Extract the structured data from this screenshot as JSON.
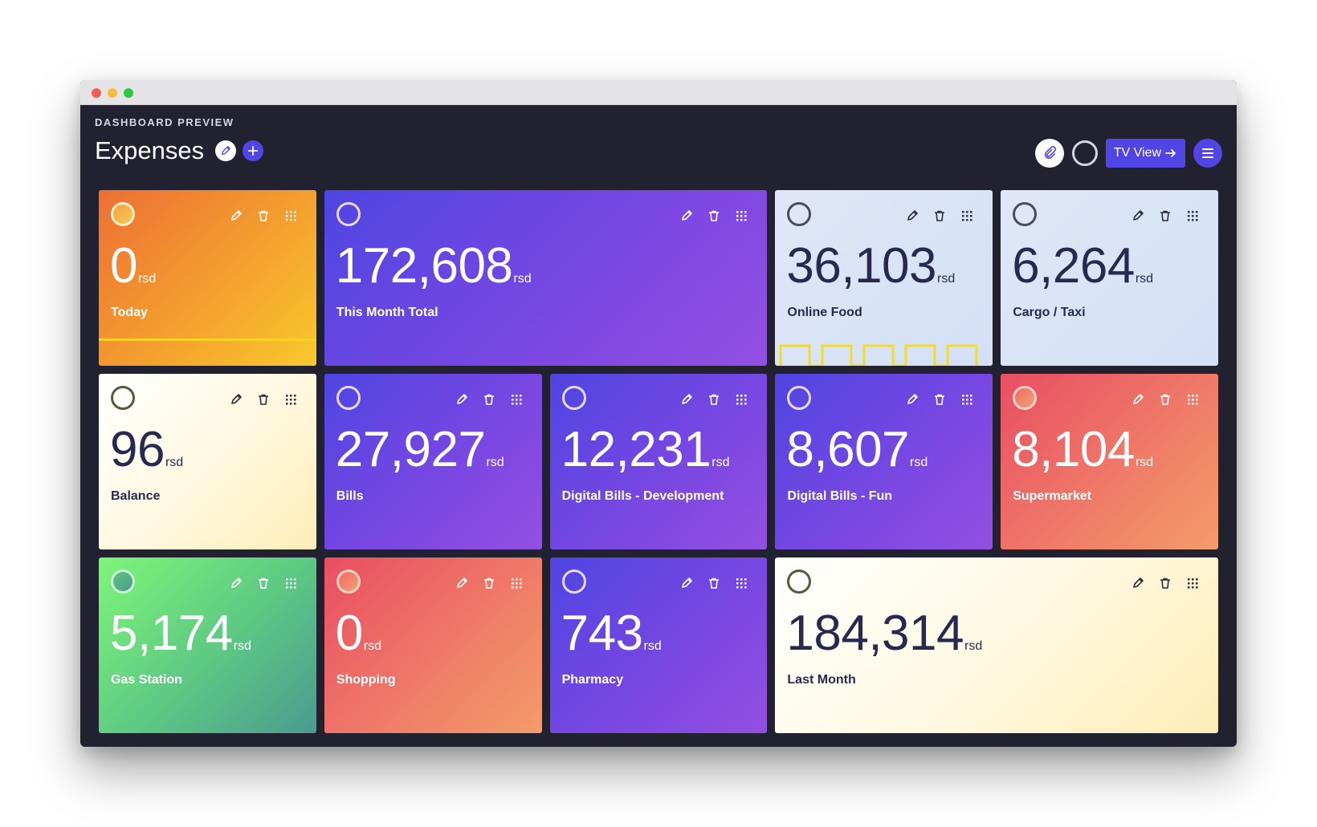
{
  "window": {
    "controls": [
      "close",
      "minimize",
      "maximize"
    ]
  },
  "header": {
    "subtitle": "DASHBOARD PREVIEW",
    "title": "Expenses",
    "tv_view_label": "TV View"
  },
  "colors": {
    "accent": "#5145e5",
    "background": "#21212f",
    "dark_text": "#272a4e"
  },
  "cards": [
    {
      "value": "0",
      "unit": "rsd",
      "label": "Today",
      "theme": "orange"
    },
    {
      "value": "172,608",
      "unit": "rsd",
      "label": "This Month Total",
      "theme": "purple"
    },
    {
      "value": "36,103",
      "unit": "rsd",
      "label": "Online Food",
      "theme": "lightblue"
    },
    {
      "value": "6,264",
      "unit": "rsd",
      "label": "Cargo / Taxi",
      "theme": "lightblue"
    },
    {
      "value": "96",
      "unit": "rsd",
      "label": "Balance",
      "theme": "cream"
    },
    {
      "value": "27,927",
      "unit": "rsd",
      "label": "Bills",
      "theme": "purple"
    },
    {
      "value": "12,231",
      "unit": "rsd",
      "label": "Digital Bills - Development",
      "theme": "purple"
    },
    {
      "value": "8,607",
      "unit": "rsd",
      "label": "Digital Bills - Fun",
      "theme": "purple"
    },
    {
      "value": "8,104",
      "unit": "rsd",
      "label": "Supermarket",
      "theme": "red"
    },
    {
      "value": "5,174",
      "unit": "rsd",
      "label": "Gas Station",
      "theme": "green"
    },
    {
      "value": "0",
      "unit": "rsd",
      "label": "Shopping",
      "theme": "red"
    },
    {
      "value": "743",
      "unit": "rsd",
      "label": "Pharmacy",
      "theme": "purple"
    },
    {
      "value": "184,314",
      "unit": "rsd",
      "label": "Last Month",
      "theme": "cream"
    }
  ]
}
